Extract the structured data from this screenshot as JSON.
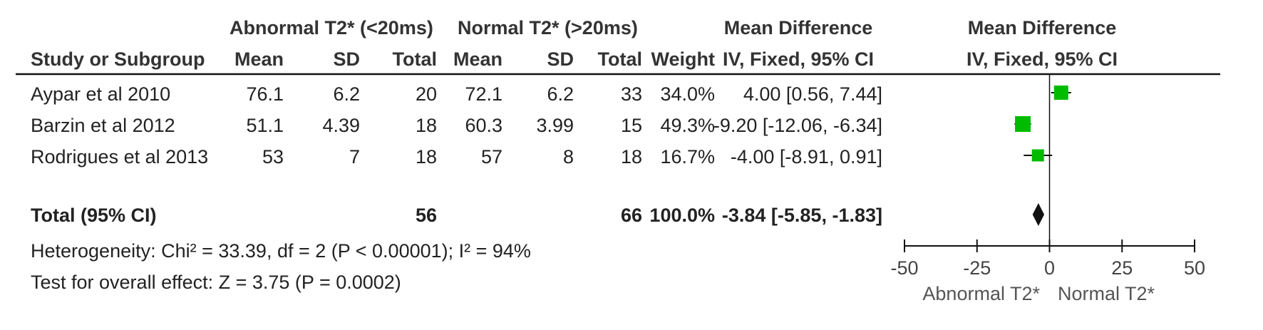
{
  "header": {
    "group1": "Abnormal T2* (<20ms)",
    "group2": "Normal T2* (>20ms)",
    "md_title": "Mean Difference",
    "md_sub": "IV, Fixed, 95% CI",
    "plot_title": "Mean Difference",
    "plot_sub": "IV, Fixed, 95% CI",
    "study": "Study or Subgroup",
    "mean1": "Mean",
    "sd1": "SD",
    "total1": "Total",
    "mean2": "Mean",
    "sd2": "SD",
    "total2": "Total",
    "weight": "Weight"
  },
  "studies": [
    {
      "name": "Aypar et al 2010",
      "mean1": "76.1",
      "sd1": "6.2",
      "n1": "20",
      "mean2": "72.1",
      "sd2": "6.2",
      "n2": "33",
      "weight": "34.0%",
      "ci_text": "4.00 [0.56, 7.44]"
    },
    {
      "name": "Barzin et al 2012",
      "mean1": "51.1",
      "sd1": "4.39",
      "n1": "18",
      "mean2": "60.3",
      "sd2": "3.99",
      "n2": "15",
      "weight": "49.3%",
      "ci_text": "-9.20 [-12.06, -6.34]"
    },
    {
      "name": "Rodrigues et al 2013",
      "mean1": "53",
      "sd1": "7",
      "n1": "18",
      "mean2": "57",
      "sd2": "8",
      "n2": "18",
      "weight": "16.7%",
      "ci_text": "-4.00 [-8.91, 0.91]"
    }
  ],
  "total": {
    "label": "Total (95% CI)",
    "n1": "56",
    "n2": "66",
    "weight": "100.0%",
    "ci_text": "-3.84 [-5.85, -1.83]"
  },
  "footer": {
    "heterogeneity": "Heterogeneity: Chi² = 33.39, df = 2 (P < 0.00001); I² = 94%",
    "overall": "Test for overall effect: Z = 3.75 (P = 0.0002)"
  },
  "axis": {
    "favours_left": "Abnormal T2*",
    "favours_right": "Normal T2*"
  },
  "chart_data": {
    "type": "forest",
    "xlim": [
      -50,
      50
    ],
    "xticks": [
      -50,
      -25,
      0,
      25,
      50
    ],
    "xtick_labels": [
      "-50",
      "-25",
      "0",
      "25",
      "50"
    ],
    "studies": [
      {
        "name": "Aypar et al 2010",
        "md": 4.0,
        "lo": 0.56,
        "hi": 7.44,
        "weight": 34.0
      },
      {
        "name": "Barzin et al 2012",
        "md": -9.2,
        "lo": -12.06,
        "hi": -6.34,
        "weight": 49.3
      },
      {
        "name": "Rodrigues et al 2013",
        "md": -4.0,
        "lo": -8.91,
        "hi": 0.91,
        "weight": 16.7
      }
    ],
    "pooled": {
      "md": -3.84,
      "lo": -5.85,
      "hi": -1.83
    },
    "colors": {
      "box": "#00bb00",
      "diamond": "#111111",
      "line": "#111111"
    }
  }
}
